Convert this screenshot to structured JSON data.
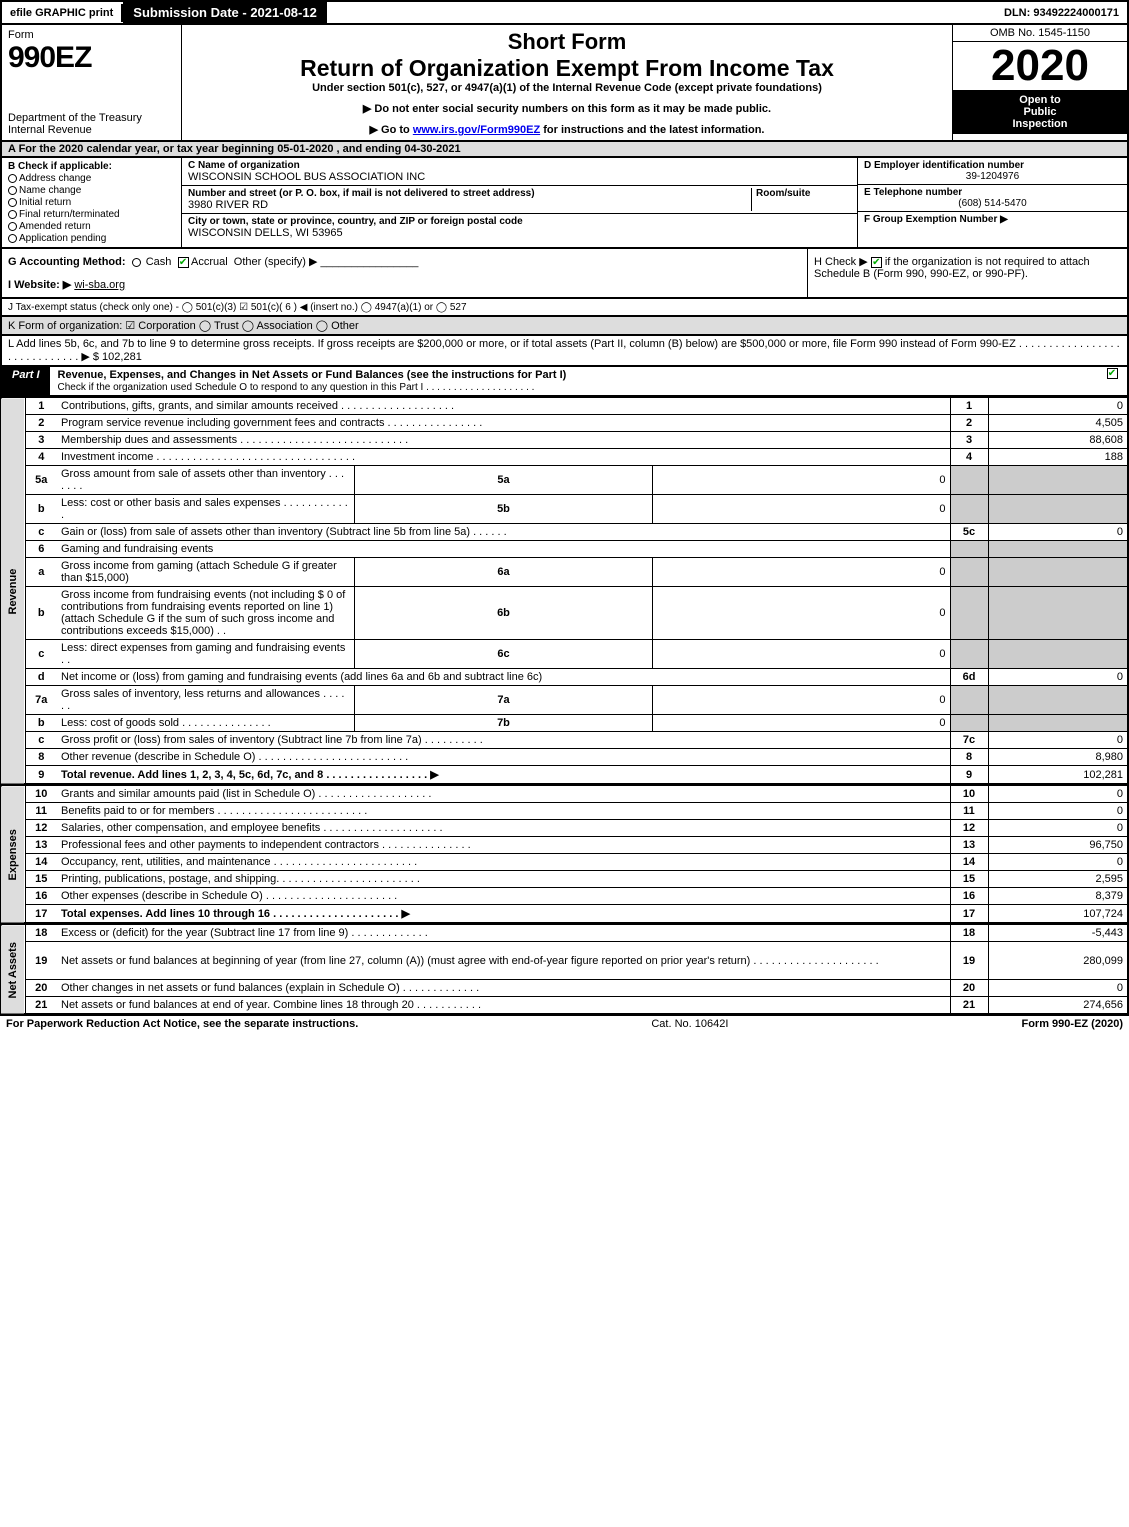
{
  "topbar": {
    "efile": "efile GRAPHIC print",
    "submission": "Submission Date - 2021-08-12",
    "dln": "DLN: 93492224000171"
  },
  "header": {
    "form_label": "Form",
    "form_num": "990EZ",
    "dept": "Department of the Treasury",
    "irs": "Internal Revenue",
    "short_form": "Short Form",
    "title": "Return of Organization Exempt From Income Tax",
    "subtitle": "Under section 501(c), 527, or 4947(a)(1) of the Internal Revenue Code (except private foundations)",
    "notice1": "▶ Do not enter social security numbers on this form as it may be made public.",
    "notice2_pre": "▶ Go to ",
    "notice2_link": "www.irs.gov/Form990EZ",
    "notice2_post": " for instructions and the latest information.",
    "omb": "OMB No. 1545-1150",
    "year": "2020",
    "inspection_l1": "Open to",
    "inspection_l2": "Public",
    "inspection_l3": "Inspection"
  },
  "section_a": "A  For the 2020 calendar year, or tax year beginning 05-01-2020 , and ending 04-30-2021",
  "col_b": {
    "hdr": "B  Check if applicable:",
    "items": [
      "Address change",
      "Name change",
      "Initial return",
      "Final return/terminated",
      "Amended return",
      "Application pending"
    ]
  },
  "col_c": {
    "name_lbl": "C Name of organization",
    "name": "WISCONSIN SCHOOL BUS ASSOCIATION INC",
    "addr_lbl": "Number and street (or P. O. box, if mail is not delivered to street address)",
    "addr": "3980 RIVER RD",
    "room_lbl": "Room/suite",
    "city_lbl": "City or town, state or province, country, and ZIP or foreign postal code",
    "city": "WISCONSIN DELLS, WI  53965"
  },
  "col_d": {
    "ein_lbl": "D Employer identification number",
    "ein": "39-1204976",
    "phone_lbl": "E Telephone number",
    "phone": "(608) 514-5470",
    "group_lbl": "F Group Exemption Number   ▶"
  },
  "gi": {
    "g": "G Accounting Method:",
    "g_cash": "Cash",
    "g_accrual": "Accrual",
    "g_other": "Other (specify) ▶",
    "i": "I Website: ▶",
    "i_val": "wi-sba.org",
    "h_pre": "H  Check ▶",
    "h_post": "if the organization is not required to attach Schedule B (Form 990, 990-EZ, or 990-PF)."
  },
  "j": "J Tax-exempt status (check only one) -  ◯ 501(c)(3)  ☑ 501(c)( 6 ) ◀ (insert no.)  ◯ 4947(a)(1) or  ◯ 527",
  "k": "K Form of organization:   ☑ Corporation   ◯ Trust   ◯ Association   ◯ Other",
  "l": {
    "text": "L Add lines 5b, 6c, and 7b to line 9 to determine gross receipts. If gross receipts are $200,000 or more, or if total assets (Part II, column (B) below) are $500,000 or more, file Form 990 instead of Form 990-EZ . . . . . . . . . . . . . . . . . . . . . . . . . . . . . ▶",
    "amount": "$ 102,281"
  },
  "part1": {
    "label": "Part I",
    "title": "Revenue, Expenses, and Changes in Net Assets or Fund Balances (see the instructions for Part I)",
    "sub": "Check if the organization used Schedule O to respond to any question in this Part I . . . . . . . . . . . . . . . . . . . ."
  },
  "side_labels": {
    "revenue": "Revenue",
    "expenses": "Expenses",
    "netassets": "Net Assets"
  },
  "rows": [
    {
      "ln": "1",
      "desc": "Contributions, gifts, grants, and similar amounts received . . . . . . . . . . . . . . . . . . .",
      "num": "1",
      "amt": "0"
    },
    {
      "ln": "2",
      "desc": "Program service revenue including government fees and contracts . . . . . . . . . . . . . . . .",
      "num": "2",
      "amt": "4,505"
    },
    {
      "ln": "3",
      "desc": "Membership dues and assessments . . . . . . . . . . . . . . . . . . . . . . . . . . . .",
      "num": "3",
      "amt": "88,608"
    },
    {
      "ln": "4",
      "desc": "Investment income . . . . . . . . . . . . . . . . . . . . . . . . . . . . . . . . .",
      "num": "4",
      "amt": "188"
    },
    {
      "ln": "5a",
      "desc": "Gross amount from sale of assets other than inventory . . . . . . .",
      "sub": "5a",
      "subval": "0"
    },
    {
      "ln": "b",
      "desc": "Less: cost or other basis and sales expenses . . . . . . . . . . . .",
      "sub": "5b",
      "subval": "0"
    },
    {
      "ln": "c",
      "desc": "Gain or (loss) from sale of assets other than inventory (Subtract line 5b from line 5a) . . . . . .",
      "num": "5c",
      "amt": "0"
    },
    {
      "ln": "6",
      "desc": "Gaming and fundraising events",
      "shade": true
    },
    {
      "ln": "a",
      "desc": "Gross income from gaming (attach Schedule G if greater than $15,000)",
      "sub": "6a",
      "subval": "0"
    },
    {
      "ln": "b",
      "desc": "Gross income from fundraising events (not including $  0                of contributions from fundraising events reported on line 1) (attach Schedule G if the sum of such gross income and contributions exceeds $15,000)    . .",
      "sub": "6b",
      "subval": "0",
      "tall": true
    },
    {
      "ln": "c",
      "desc": "Less: direct expenses from gaming and fundraising events        . .",
      "sub": "6c",
      "subval": "0"
    },
    {
      "ln": "d",
      "desc": "Net income or (loss) from gaming and fundraising events (add lines 6a and 6b and subtract line 6c)",
      "num": "6d",
      "amt": "0"
    },
    {
      "ln": "7a",
      "desc": "Gross sales of inventory, less returns and allowances . . . . . .",
      "sub": "7a",
      "subval": "0"
    },
    {
      "ln": "b",
      "desc": "Less: cost of goods sold            . . . . . . . . . . . . . . .",
      "sub": "7b",
      "subval": "0"
    },
    {
      "ln": "c",
      "desc": "Gross profit or (loss) from sales of inventory (Subtract line 7b from line 7a) . . . . . . . . . .",
      "num": "7c",
      "amt": "0"
    },
    {
      "ln": "8",
      "desc": "Other revenue (describe in Schedule O) . . . . . . . . . . . . . . . . . . . . . . . . .",
      "num": "8",
      "amt": "8,980"
    },
    {
      "ln": "9",
      "desc": "Total revenue. Add lines 1, 2, 3, 4, 5c, 6d, 7c, and 8  . . . . . . . . . . . . . . . . .  ▶",
      "num": "9",
      "amt": "102,281",
      "bold": true
    }
  ],
  "exp_rows": [
    {
      "ln": "10",
      "desc": "Grants and similar amounts paid (list in Schedule O) . . . . . . . . . . . . . . . . . . .",
      "num": "10",
      "amt": "0"
    },
    {
      "ln": "11",
      "desc": "Benefits paid to or for members        . . . . . . . . . . . . . . . . . . . . . . . . .",
      "num": "11",
      "amt": "0"
    },
    {
      "ln": "12",
      "desc": "Salaries, other compensation, and employee benefits . . . . . . . . . . . . . . . . . . . .",
      "num": "12",
      "amt": "0"
    },
    {
      "ln": "13",
      "desc": "Professional fees and other payments to independent contractors . . . . . . . . . . . . . . .",
      "num": "13",
      "amt": "96,750"
    },
    {
      "ln": "14",
      "desc": "Occupancy, rent, utilities, and maintenance . . . . . . . . . . . . . . . . . . . . . . . .",
      "num": "14",
      "amt": "0"
    },
    {
      "ln": "15",
      "desc": "Printing, publications, postage, and shipping. . . . . . . . . . . . . . . . . . . . . . . .",
      "num": "15",
      "amt": "2,595"
    },
    {
      "ln": "16",
      "desc": "Other expenses (describe in Schedule O)      . . . . . . . . . . . . . . . . . . . . . .",
      "num": "16",
      "amt": "8,379"
    },
    {
      "ln": "17",
      "desc": "Total expenses. Add lines 10 through 16     . . . . . . . . . . . . . . . . . . . . .  ▶",
      "num": "17",
      "amt": "107,724",
      "bold": true
    }
  ],
  "na_rows": [
    {
      "ln": "18",
      "desc": "Excess or (deficit) for the year (Subtract line 17 from line 9)        . . . . . . . . . . . . .",
      "num": "18",
      "amt": "-5,443"
    },
    {
      "ln": "19",
      "desc": "Net assets or fund balances at beginning of year (from line 27, column (A)) (must agree with end-of-year figure reported on prior year's return) . . . . . . . . . . . . . . . . . . . . .",
      "num": "19",
      "amt": "280,099",
      "tall": true
    },
    {
      "ln": "20",
      "desc": "Other changes in net assets or fund balances (explain in Schedule O) . . . . . . . . . . . . .",
      "num": "20",
      "amt": "0"
    },
    {
      "ln": "21",
      "desc": "Net assets or fund balances at end of year. Combine lines 18 through 20 . . . . . . . . . . .",
      "num": "21",
      "amt": "274,656"
    }
  ],
  "footer": {
    "left": "For Paperwork Reduction Act Notice, see the separate instructions.",
    "cat": "Cat. No. 10642I",
    "right": "Form 990-EZ (2020)"
  }
}
